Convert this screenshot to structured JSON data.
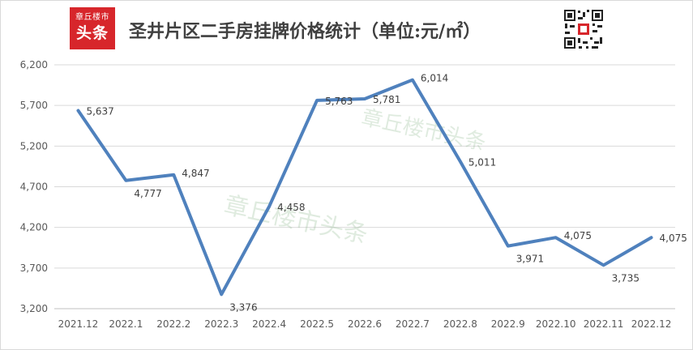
{
  "header": {
    "logo_line1": "章丘楼市",
    "logo_line2": "头条",
    "title": "圣井片区二手房挂牌价格统计（单位:元/㎡）"
  },
  "watermark": "章丘楼市头条",
  "chart_data": {
    "type": "line",
    "title": "圣井片区二手房挂牌价格统计（单位:元/㎡）",
    "xlabel": "",
    "ylabel": "",
    "categories": [
      "2021.12",
      "2022.1",
      "2022.2",
      "2022.3",
      "2022.4",
      "2022.5",
      "2022.6",
      "2022.7",
      "2022.8",
      "2022.9",
      "2022.10",
      "2022.11",
      "2022.12"
    ],
    "values": [
      5637,
      4777,
      4847,
      3376,
      4458,
      5763,
      5781,
      6014,
      5011,
      3971,
      4075,
      3735,
      4075
    ],
    "data_labels": [
      "5,637",
      "4,777",
      "4,847",
      "3,376",
      "4,458",
      "5,763",
      "5,781",
      "6,014",
      "5,011",
      "3,971",
      "4,075",
      "3,735",
      "4,075"
    ],
    "yticks": [
      "3,200",
      "3,700",
      "4,200",
      "4,700",
      "5,200",
      "5,700",
      "6,200"
    ],
    "ylim": [
      3200,
      6200
    ],
    "grid": true,
    "legend": "none",
    "line_color": "#4f81bd"
  }
}
